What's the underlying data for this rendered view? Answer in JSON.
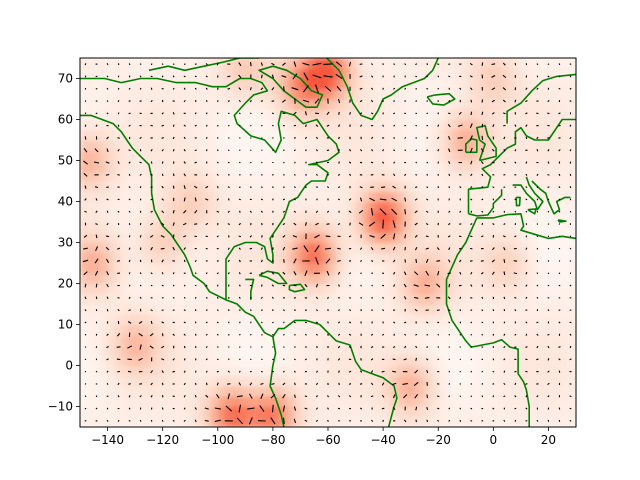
{
  "chart_data": {
    "type": "heatmap",
    "title": "",
    "xlabel": "",
    "ylabel": "",
    "xlim": [
      -150,
      30
    ],
    "ylim": [
      -15,
      75
    ],
    "x_ticks": [
      -140,
      -120,
      -100,
      -80,
      -60,
      -40,
      -20,
      0,
      20
    ],
    "x_tick_labels": [
      "−140",
      "−120",
      "−100",
      "−80",
      "−60",
      "−40",
      "−20",
      "0",
      "20"
    ],
    "y_ticks": [
      -10,
      0,
      10,
      20,
      30,
      40,
      50,
      60,
      70
    ],
    "y_tick_labels": [
      "−10",
      "0",
      "10",
      "20",
      "30",
      "40",
      "50",
      "60",
      "70"
    ],
    "colormap": [
      "#fff5f0",
      "#fdd2bf",
      "#fc9e80",
      "#f6583e"
    ],
    "coastline_color": "#008000",
    "arrow_color": "#000000",
    "grid": false,
    "hotspots": [
      {
        "lon": -40,
        "lat": 36,
        "value": 0.95
      },
      {
        "lon": -65,
        "lat": 27,
        "value": 0.85
      },
      {
        "lon": -60,
        "lat": 72,
        "value": 0.9
      },
      {
        "lon": -70,
        "lat": 68,
        "value": 0.6
      },
      {
        "lon": -95,
        "lat": -12,
        "value": 0.8
      },
      {
        "lon": -80,
        "lat": -12,
        "value": 0.75
      },
      {
        "lon": -30,
        "lat": -5,
        "value": 0.5
      },
      {
        "lon": -25,
        "lat": 20,
        "value": 0.45
      },
      {
        "lon": -10,
        "lat": 55,
        "value": 0.55
      },
      {
        "lon": -147,
        "lat": 50,
        "value": 0.5
      },
      {
        "lon": -145,
        "lat": 25,
        "value": 0.45
      },
      {
        "lon": -130,
        "lat": 5,
        "value": 0.4
      },
      {
        "lon": -120,
        "lat": 30,
        "value": 0.35
      },
      {
        "lon": -110,
        "lat": 40,
        "value": 0.3
      },
      {
        "lon": 5,
        "lat": 25,
        "value": 0.3
      },
      {
        "lon": -90,
        "lat": 72,
        "value": 0.3
      },
      {
        "lon": 0,
        "lat": 70,
        "value": 0.3
      }
    ],
    "coastlines": {
      "north_america_west": [
        [
          -150,
          61
        ],
        [
          -146,
          61
        ],
        [
          -142,
          60
        ],
        [
          -138,
          59
        ],
        [
          -135,
          57
        ],
        [
          -133,
          55
        ],
        [
          -131,
          53
        ],
        [
          -128,
          51
        ],
        [
          -125,
          49
        ],
        [
          -124,
          46
        ],
        [
          -124,
          42
        ],
        [
          -123,
          38
        ],
        [
          -120,
          34
        ],
        [
          -117,
          32
        ],
        [
          -115,
          30
        ],
        [
          -112,
          27
        ],
        [
          -110,
          24
        ],
        [
          -109,
          22
        ],
        [
          -105,
          20
        ],
        [
          -103,
          18
        ],
        [
          -97,
          16
        ],
        [
          -93,
          15
        ],
        [
          -90,
          13
        ],
        [
          -87,
          12
        ],
        [
          -85,
          10
        ],
        [
          -83,
          8
        ],
        [
          -80,
          7
        ]
      ],
      "gulf_and_east": [
        [
          -97,
          16
        ],
        [
          -97,
          20
        ],
        [
          -97,
          26
        ],
        [
          -94,
          29
        ],
        [
          -90,
          30
        ],
        [
          -86,
          30
        ],
        [
          -83,
          29
        ],
        [
          -82,
          26
        ],
        [
          -80,
          25
        ],
        [
          -80,
          27
        ],
        [
          -81,
          31
        ],
        [
          -78,
          34
        ],
        [
          -76,
          36
        ],
        [
          -75,
          38
        ],
        [
          -74,
          40
        ],
        [
          -71,
          41
        ],
        [
          -70,
          42
        ],
        [
          -68,
          44
        ],
        [
          -66,
          45
        ],
        [
          -64,
          45
        ],
        [
          -61,
          45
        ],
        [
          -60,
          47
        ],
        [
          -64,
          49
        ],
        [
          -67,
          49
        ],
        [
          -60,
          50
        ],
        [
          -56,
          52
        ],
        [
          -57,
          54
        ],
        [
          -60,
          56
        ],
        [
          -62,
          58
        ],
        [
          -64,
          60
        ],
        [
          -69,
          59
        ],
        [
          -72,
          61
        ],
        [
          -77,
          62
        ],
        [
          -78,
          59
        ],
        [
          -77,
          55
        ],
        [
          -79,
          52
        ],
        [
          -83,
          55
        ],
        [
          -88,
          56
        ],
        [
          -93,
          59
        ],
        [
          -94,
          61
        ],
        [
          -90,
          64
        ],
        [
          -87,
          66
        ],
        [
          -82,
          67
        ],
        [
          -84,
          69
        ],
        [
          -88,
          70
        ],
        [
          -92,
          70
        ],
        [
          -97,
          68
        ],
        [
          -102,
          68
        ],
        [
          -108,
          69
        ],
        [
          -115,
          69
        ],
        [
          -122,
          70
        ],
        [
          -128,
          70
        ],
        [
          -135,
          69
        ],
        [
          -141,
          70
        ],
        [
          -150,
          70
        ]
      ],
      "yucatan": [
        [
          -90,
          21
        ],
        [
          -87,
          21
        ],
        [
          -88,
          18
        ],
        [
          -88,
          16
        ]
      ],
      "south_america": [
        [
          -80,
          7
        ],
        [
          -78,
          9
        ],
        [
          -76,
          9
        ],
        [
          -72,
          11
        ],
        [
          -68,
          11
        ],
        [
          -63,
          10
        ],
        [
          -60,
          8
        ],
        [
          -57,
          6
        ],
        [
          -52,
          5
        ],
        [
          -50,
          1
        ],
        [
          -48,
          -1
        ],
        [
          -44,
          -2
        ],
        [
          -40,
          -3
        ],
        [
          -36,
          -5
        ],
        [
          -35,
          -8
        ],
        [
          -36,
          -10
        ],
        [
          -38,
          -15
        ]
      ],
      "south_america_west": [
        [
          -80,
          7
        ],
        [
          -79,
          3
        ],
        [
          -80,
          0
        ],
        [
          -81,
          -5
        ],
        [
          -79,
          -8
        ],
        [
          -77,
          -12
        ],
        [
          -76,
          -15
        ]
      ],
      "cuba": [
        [
          -85,
          22
        ],
        [
          -82,
          23
        ],
        [
          -78,
          22.5
        ],
        [
          -75,
          20
        ],
        [
          -78,
          20
        ],
        [
          -82,
          21.5
        ],
        [
          -85,
          22
        ]
      ],
      "hispaniola": [
        [
          -74,
          19.5
        ],
        [
          -70,
          19.8
        ],
        [
          -68.5,
          18.5
        ],
        [
          -72,
          18
        ],
        [
          -74,
          18.5
        ],
        [
          -74,
          19.5
        ]
      ],
      "greenland": [
        [
          -73,
          78
        ],
        [
          -68,
          76
        ],
        [
          -62,
          76
        ],
        [
          -56,
          72
        ],
        [
          -53,
          68
        ],
        [
          -51,
          64
        ],
        [
          -48,
          61
        ],
        [
          -44,
          60
        ],
        [
          -42,
          62
        ],
        [
          -40,
          65
        ],
        [
          -37,
          66
        ],
        [
          -33,
          68
        ],
        [
          -25,
          70
        ],
        [
          -22,
          72
        ],
        [
          -20,
          75
        ],
        [
          -18,
          78
        ]
      ],
      "iceland": [
        [
          -24,
          65.5
        ],
        [
          -21,
          66
        ],
        [
          -16,
          66.3
        ],
        [
          -14,
          65
        ],
        [
          -18,
          63.5
        ],
        [
          -22,
          63.8
        ],
        [
          -24,
          65.5
        ]
      ],
      "baffin": [
        [
          -80,
          73
        ],
        [
          -75,
          72
        ],
        [
          -70,
          70
        ],
        [
          -66,
          67
        ],
        [
          -62,
          66
        ],
        [
          -64,
          63
        ],
        [
          -68,
          63
        ],
        [
          -72,
          65
        ],
        [
          -76,
          67
        ],
        [
          -80,
          70
        ],
        [
          -85,
          72
        ],
        [
          -80,
          73
        ]
      ],
      "arctic_islands": [
        [
          -125,
          72
        ],
        [
          -118,
          73
        ],
        [
          -112,
          72
        ],
        [
          -105,
          73
        ],
        [
          -98,
          74
        ],
        [
          -92,
          75
        ],
        [
          -85,
          75
        ]
      ],
      "britain": [
        [
          -5,
          50
        ],
        [
          1,
          51
        ],
        [
          1,
          53
        ],
        [
          -2,
          56
        ],
        [
          -3,
          58.5
        ],
        [
          -6,
          58
        ],
        [
          -5,
          55
        ],
        [
          -3,
          54
        ],
        [
          -4,
          52
        ],
        [
          -5,
          50
        ]
      ],
      "ireland": [
        [
          -10,
          52
        ],
        [
          -6,
          52
        ],
        [
          -6,
          55
        ],
        [
          -8,
          55.3
        ],
        [
          -10,
          54
        ],
        [
          -10,
          52
        ]
      ],
      "europe": [
        [
          -9,
          37
        ],
        [
          -9,
          43
        ],
        [
          -2,
          43.5
        ],
        [
          -1,
          46
        ],
        [
          -4,
          48
        ],
        [
          -1,
          49
        ],
        [
          2,
          51
        ],
        [
          5,
          53
        ],
        [
          8,
          54
        ],
        [
          8,
          57
        ],
        [
          10,
          58
        ],
        [
          12,
          56
        ],
        [
          15,
          55
        ],
        [
          20,
          55
        ],
        [
          25,
          60
        ],
        [
          30,
          60
        ]
      ],
      "norway": [
        [
          5,
          59
        ],
        [
          5,
          62
        ],
        [
          10,
          64
        ],
        [
          14,
          67
        ],
        [
          18,
          69.5
        ],
        [
          23,
          70.5
        ],
        [
          30,
          71
        ]
      ],
      "africa": [
        [
          -6,
          36
        ],
        [
          -10,
          30
        ],
        [
          -13,
          27
        ],
        [
          -17,
          21
        ],
        [
          -17,
          15
        ],
        [
          -15,
          11
        ],
        [
          -13,
          9
        ],
        [
          -10,
          6
        ],
        [
          -8,
          4.5
        ],
        [
          -4,
          5
        ],
        [
          0,
          5.5
        ],
        [
          3,
          6.3
        ],
        [
          6,
          4.5
        ],
        [
          9,
          4
        ],
        [
          9,
          1
        ],
        [
          9,
          -2
        ],
        [
          11,
          -4
        ],
        [
          12,
          -6
        ],
        [
          13,
          -10
        ],
        [
          13,
          -15
        ]
      ],
      "mediterranean": [
        [
          -6,
          36
        ],
        [
          0,
          36
        ],
        [
          5,
          36.8
        ],
        [
          10,
          37
        ],
        [
          11,
          34
        ],
        [
          10,
          33
        ],
        [
          15,
          32
        ],
        [
          20,
          31
        ],
        [
          25,
          31.5
        ],
        [
          30,
          31
        ]
      ],
      "iberia_south": [
        [
          -9,
          37
        ],
        [
          -6,
          36.5
        ],
        [
          -2,
          36.7
        ],
        [
          0,
          38.5
        ],
        [
          0,
          39.5
        ],
        [
          3,
          41.5
        ],
        [
          3,
          43
        ]
      ],
      "italy": [
        [
          7,
          44
        ],
        [
          10,
          44
        ],
        [
          12,
          42
        ],
        [
          15,
          40
        ],
        [
          16,
          38
        ],
        [
          18,
          40
        ],
        [
          15,
          42
        ],
        [
          13,
          44
        ],
        [
          12,
          46
        ]
      ],
      "balkans": [
        [
          14,
          45
        ],
        [
          17,
          43
        ],
        [
          19,
          42
        ],
        [
          20,
          40
        ],
        [
          22,
          37
        ],
        [
          24,
          38
        ],
        [
          23,
          40
        ],
        [
          26,
          41
        ],
        [
          28,
          41
        ]
      ],
      "sicily": [
        [
          12.5,
          38
        ],
        [
          15.5,
          38.2
        ],
        [
          15,
          37
        ],
        [
          12.5,
          38
        ]
      ],
      "sardinia": [
        [
          8.3,
          41
        ],
        [
          9.7,
          41
        ],
        [
          9.5,
          39
        ],
        [
          8.4,
          39
        ],
        [
          8.3,
          41
        ]
      ],
      "crete": [
        [
          23.5,
          35.5
        ],
        [
          26.3,
          35.2
        ],
        [
          24,
          35
        ],
        [
          23.5,
          35.5
        ]
      ]
    }
  }
}
